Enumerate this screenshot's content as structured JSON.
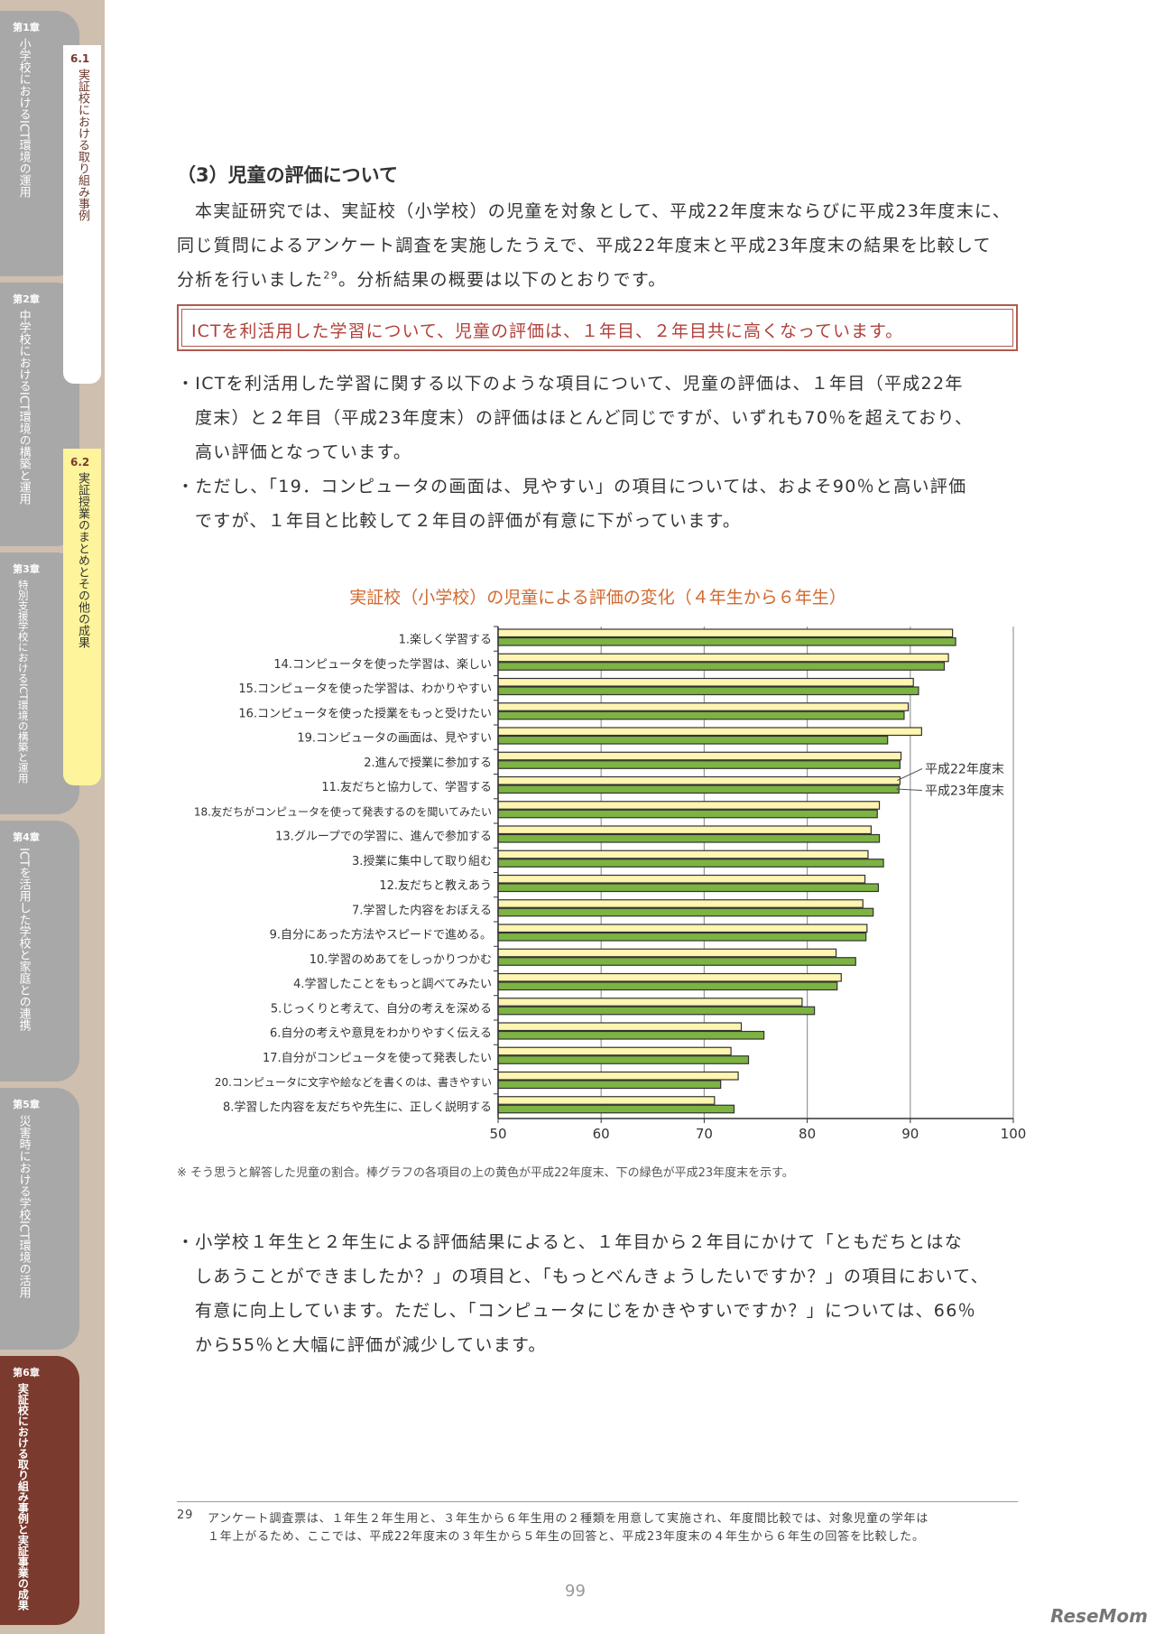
{
  "sidebar": {
    "chapters": [
      {
        "num": "第1章",
        "title": "小学校におけるICT環境の運用"
      },
      {
        "num": "第2章",
        "title": "中学校におけるICT環境の構築と運用"
      },
      {
        "num": "第3章",
        "title": "特別支援学校におけるICT環境の構築と運用"
      },
      {
        "num": "第4章",
        "title": "ICTを活用した学校と家庭との連携"
      },
      {
        "num": "第5章",
        "title": "災害時における学校ICT環境の活用"
      },
      {
        "num": "第6章",
        "title": "実証校における取り組み事例と実証事業の成果"
      }
    ],
    "sections": [
      {
        "num": "6.1",
        "title": "実証校における取り組み事例"
      },
      {
        "num": "6.2",
        "title": "実証授業のまとめとその他の成果"
      }
    ]
  },
  "heading": "（3）児童の評価について",
  "intro": [
    "本実証研究では、実証校（小学校）の児童を対象として、平成22年度末ならびに平成23年度末に、",
    "同じ質問によるアンケート調査を実施したうえで、平成22年度末と平成23年度末の結果を比較して",
    "分析を行いました",
    "29",
    "。分析結果の概要は以下のとおりです。"
  ],
  "summary_box": "ICTを利活用した学習について、児童の評価は、１年目、２年目共に高くなっています。",
  "bullets1": [
    "・ICTを利活用した学習に関する以下のような項目について、児童の評価は、１年目（平成22年",
    "度末）と２年目（平成23年度末）の評価はほとんど同じですが、いずれも70％を超えており、",
    "高い評価となっています。",
    "・ただし、「19．コンピュータの画面は、見やすい」の項目については、およそ90％と高い評価",
    "ですが、１年目と比較して２年目の評価が有意に下がっています。"
  ],
  "chart_data": {
    "type": "bar",
    "orientation": "horizontal",
    "title": "実証校（小学校）の児童による評価の変化（４年生から６年生）",
    "categories": [
      "1.楽しく学習する",
      "14.コンピュータを使った学習は、楽しい",
      "15.コンピュータを使った学習は、わかりやすい",
      "16.コンピュータを使った授業をもっと受けたい",
      "19.コンピュータの画面は、見やすい",
      "2.進んで授業に参加する",
      "11.友だちと協力して、学習する",
      "18.友だちがコンピュータを使って発表するのを聞いてみたい",
      "13.グループでの学習に、進んで参加する",
      "3.授業に集中して取り組む",
      "12.友だちと教えあう",
      "7.学習した内容をおぼえる",
      "9.自分にあった方法やスピードで進める。",
      "10.学習のめあてをしっかりつかむ",
      "4.学習したことをもっと調べてみたい",
      "5.じっくりと考えて、自分の考えを深める",
      "6.自分の考えや意見をわかりやすく伝える",
      "17.自分がコンピュータを使って発表したい",
      "20.コンピュータに文字や絵などを書くのは、書きやすい",
      "8.学習した内容を友だちや先生に、正しく説明する"
    ],
    "series": [
      {
        "name": "平成22年度末",
        "color": "#fdf5b0",
        "values": [
          94.1,
          93.7,
          90.3,
          89.8,
          91.1,
          89.1,
          89.0,
          87.0,
          86.2,
          85.9,
          85.6,
          85.4,
          85.8,
          82.8,
          83.3,
          79.5,
          73.6,
          72.6,
          73.3,
          71.0
        ]
      },
      {
        "name": "平成23年度末",
        "color": "#7cb342",
        "values": [
          94.4,
          93.3,
          90.8,
          89.4,
          87.8,
          89.0,
          88.9,
          86.8,
          87.0,
          87.4,
          86.9,
          86.4,
          85.7,
          84.7,
          82.9,
          80.7,
          75.8,
          74.3,
          71.6,
          72.9
        ]
      }
    ],
    "xlim": [
      50,
      100
    ],
    "xticks": [
      "50",
      "60",
      "70",
      "80",
      "90",
      "100"
    ],
    "grid": true,
    "legend": "callout-right"
  },
  "chart_note": "※ そう思うと解答した児童の割合。棒グラフの各項目の上の黄色が平成22年度末、下の緑色が平成23年度末を示す。",
  "bullets2": [
    "・小学校１年生と２年生による評価結果によると、１年目から２年目にかけて「ともだちとはな",
    "しあうことができましたか？」の項目と、「もっとべんきょうしたいですか？」の項目において、",
    "有意に向上しています。ただし、「コンピュータにじをかきやすいですか？」については、66％",
    "から55％と大幅に評価が減少しています。"
  ],
  "footnote": {
    "num": "29",
    "lines": [
      "アンケート調査票は、１年生２年生用と、３年生から６年生用の２種類を用意して実施され、年度間比較では、対象児童の学年は",
      "１年上がるため、ここでは、平成22年度末の３年生から５年生の回答と、平成23年度末の４年生から６年生の回答を比較した。"
    ]
  },
  "page_number": "99",
  "logo": "ReseMom"
}
